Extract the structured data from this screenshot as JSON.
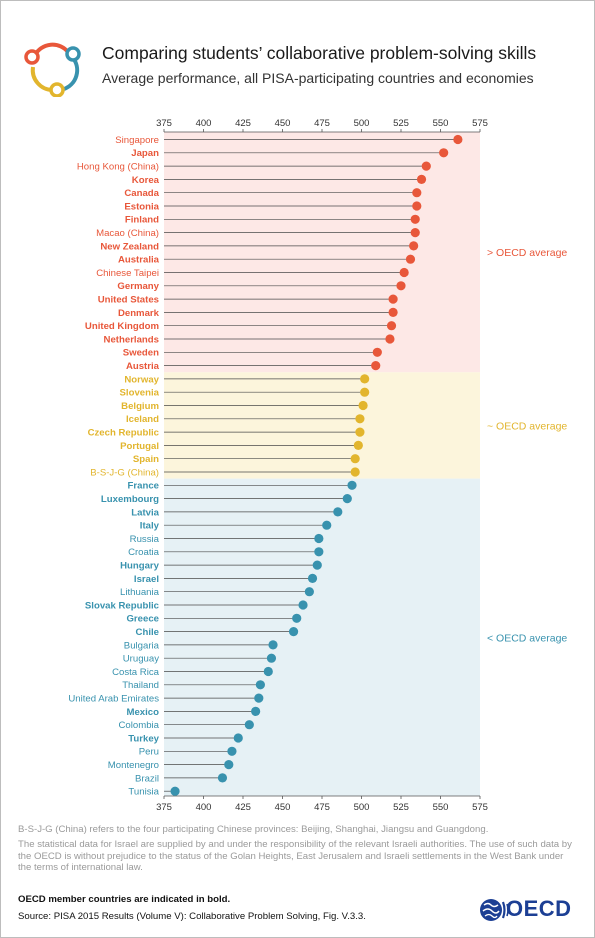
{
  "header": {
    "title": "Comparing students’ collaborative problem-solving skills",
    "subtitle": "Average performance, all PISA-participating countries and economies",
    "logo_icon": "collaboration-circle-icon"
  },
  "colors": {
    "above": "#e8573a",
    "similar": "#e2b52d",
    "below": "#3892ae",
    "above_bg": "#fde8e6",
    "similar_bg": "#fcf5dc",
    "below_bg": "#e6f1f5"
  },
  "chart_data": {
    "type": "scatter",
    "style": "lollipop",
    "orientation": "horizontal",
    "xlim": [
      375,
      575
    ],
    "xticks": [
      375,
      400,
      425,
      450,
      475,
      500,
      525,
      550,
      575
    ],
    "bands": [
      {
        "group": "above",
        "label": "> OECD average"
      },
      {
        "group": "similar",
        "label": "~ OECD average"
      },
      {
        "group": "below",
        "label": "< OECD average"
      }
    ],
    "points": [
      {
        "name": "Singapore",
        "value": 561,
        "group": "above",
        "bold": false
      },
      {
        "name": "Japan",
        "value": 552,
        "group": "above",
        "bold": true
      },
      {
        "name": "Hong Kong (China)",
        "value": 541,
        "group": "above",
        "bold": false
      },
      {
        "name": "Korea",
        "value": 538,
        "group": "above",
        "bold": true
      },
      {
        "name": "Canada",
        "value": 535,
        "group": "above",
        "bold": true
      },
      {
        "name": "Estonia",
        "value": 535,
        "group": "above",
        "bold": true
      },
      {
        "name": "Finland",
        "value": 534,
        "group": "above",
        "bold": true
      },
      {
        "name": "Macao (China)",
        "value": 534,
        "group": "above",
        "bold": false
      },
      {
        "name": "New Zealand",
        "value": 533,
        "group": "above",
        "bold": true
      },
      {
        "name": "Australia",
        "value": 531,
        "group": "above",
        "bold": true
      },
      {
        "name": "Chinese Taipei",
        "value": 527,
        "group": "above",
        "bold": false
      },
      {
        "name": "Germany",
        "value": 525,
        "group": "above",
        "bold": true
      },
      {
        "name": "United States",
        "value": 520,
        "group": "above",
        "bold": true
      },
      {
        "name": "Denmark",
        "value": 520,
        "group": "above",
        "bold": true
      },
      {
        "name": "United Kingdom",
        "value": 519,
        "group": "above",
        "bold": true
      },
      {
        "name": "Netherlands",
        "value": 518,
        "group": "above",
        "bold": true
      },
      {
        "name": "Sweden",
        "value": 510,
        "group": "above",
        "bold": true
      },
      {
        "name": "Austria",
        "value": 509,
        "group": "above",
        "bold": true
      },
      {
        "name": "Norway",
        "value": 502,
        "group": "similar",
        "bold": true
      },
      {
        "name": "Slovenia",
        "value": 502,
        "group": "similar",
        "bold": true
      },
      {
        "name": "Belgium",
        "value": 501,
        "group": "similar",
        "bold": true
      },
      {
        "name": "Iceland",
        "value": 499,
        "group": "similar",
        "bold": true
      },
      {
        "name": "Czech Republic",
        "value": 499,
        "group": "similar",
        "bold": true
      },
      {
        "name": "Portugal",
        "value": 498,
        "group": "similar",
        "bold": true
      },
      {
        "name": "Spain",
        "value": 496,
        "group": "similar",
        "bold": true
      },
      {
        "name": "B-S-J-G (China)",
        "value": 496,
        "group": "similar",
        "bold": false
      },
      {
        "name": "France",
        "value": 494,
        "group": "below",
        "bold": true
      },
      {
        "name": "Luxembourg",
        "value": 491,
        "group": "below",
        "bold": true
      },
      {
        "name": "Latvia",
        "value": 485,
        "group": "below",
        "bold": true
      },
      {
        "name": "Italy",
        "value": 478,
        "group": "below",
        "bold": true
      },
      {
        "name": "Russia",
        "value": 473,
        "group": "below",
        "bold": false
      },
      {
        "name": "Croatia",
        "value": 473,
        "group": "below",
        "bold": false
      },
      {
        "name": "Hungary",
        "value": 472,
        "group": "below",
        "bold": true
      },
      {
        "name": "Israel",
        "value": 469,
        "group": "below",
        "bold": true
      },
      {
        "name": "Lithuania",
        "value": 467,
        "group": "below",
        "bold": false
      },
      {
        "name": "Slovak Republic",
        "value": 463,
        "group": "below",
        "bold": true
      },
      {
        "name": "Greece",
        "value": 459,
        "group": "below",
        "bold": true
      },
      {
        "name": "Chile",
        "value": 457,
        "group": "below",
        "bold": true
      },
      {
        "name": "Bulgaria",
        "value": 444,
        "group": "below",
        "bold": false
      },
      {
        "name": "Uruguay",
        "value": 443,
        "group": "below",
        "bold": false
      },
      {
        "name": "Costa Rica",
        "value": 441,
        "group": "below",
        "bold": false
      },
      {
        "name": "Thailand",
        "value": 436,
        "group": "below",
        "bold": false
      },
      {
        "name": "United Arab Emirates",
        "value": 435,
        "group": "below",
        "bold": false
      },
      {
        "name": "Mexico",
        "value": 433,
        "group": "below",
        "bold": true
      },
      {
        "name": "Colombia",
        "value": 429,
        "group": "below",
        "bold": false
      },
      {
        "name": "Turkey",
        "value": 422,
        "group": "below",
        "bold": true
      },
      {
        "name": "Peru",
        "value": 418,
        "group": "below",
        "bold": false
      },
      {
        "name": "Montenegro",
        "value": 416,
        "group": "below",
        "bold": false
      },
      {
        "name": "Brazil",
        "value": 412,
        "group": "below",
        "bold": false
      },
      {
        "name": "Tunisia",
        "value": 382,
        "group": "below",
        "bold": false
      }
    ]
  },
  "footnotes": {
    "bsjg": "B-S-J-G (China) refers to the four participating Chinese provinces: Beijing, Shanghai, Jiangsu and Guangdong.",
    "israel": "The statistical data for Israel are supplied by and under the responsibility of the relevant Israeli authorities. The use of such data by the OECD is without prejudice to the status of the Golan Heights, East Jerusalem and Israeli settlements in the West Bank under the terms of international law.",
    "bold_note": "OECD member countries are indicated in bold.",
    "source": "Source: PISA 2015 Results (Volume V): Collaborative Problem Solving, Fig. V.3.3."
  },
  "brand": {
    "name": "OECD",
    "logo_icon": "oecd-globe-icon"
  }
}
